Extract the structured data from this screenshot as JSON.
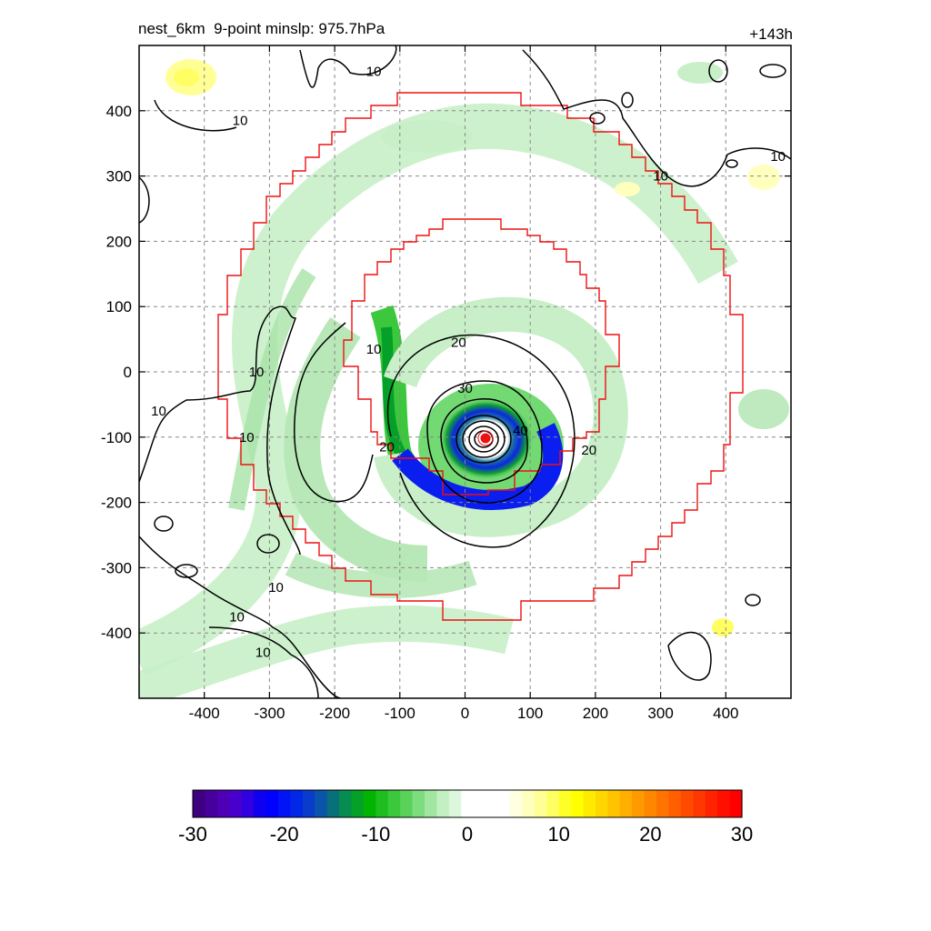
{
  "header": {
    "title": "nest_6km  9-point minslp: 975.7hPa",
    "forecast_hour": "+143h"
  },
  "chart_data": {
    "type": "contour_map",
    "title": "nest_6km  9-point minslp: 975.7hPa",
    "time_label": "+143h",
    "xlim": [
      -500,
      500
    ],
    "ylim": [
      -500,
      500
    ],
    "x_ticks": [
      -400,
      -300,
      -200,
      -100,
      0,
      100,
      200,
      300,
      400
    ],
    "y_ticks": [
      -400,
      -300,
      -200,
      -100,
      0,
      100,
      200,
      300,
      400
    ],
    "x_tick_labels": [
      "-400",
      "-300",
      "-200",
      "-100",
      "0",
      "100",
      "200",
      "300",
      "400"
    ],
    "y_tick_labels": [
      "-400",
      "-300",
      "-200",
      "-100",
      "0",
      "100",
      "200",
      "300",
      "400"
    ],
    "grid": true,
    "storm_center": {
      "x": 30,
      "y": -100
    },
    "contour_labels": [
      {
        "text": "10",
        "x": -140,
        "y": 35
      },
      {
        "text": "10",
        "x": -320,
        "y": 0
      },
      {
        "text": "10",
        "x": -470,
        "y": -60
      },
      {
        "text": "10",
        "x": -335,
        "y": -100
      },
      {
        "text": "10",
        "x": -290,
        "y": -330
      },
      {
        "text": "10",
        "x": -350,
        "y": -375
      },
      {
        "text": "10",
        "x": -310,
        "y": -430
      },
      {
        "text": "10",
        "x": -345,
        "y": 385
      },
      {
        "text": "10",
        "x": -140,
        "y": 460
      },
      {
        "text": "10",
        "x": 300,
        "y": 300
      },
      {
        "text": "10",
        "x": 480,
        "y": 330
      },
      {
        "text": "20",
        "x": -10,
        "y": 45
      },
      {
        "text": "20",
        "x": 190,
        "y": -120
      },
      {
        "text": "20",
        "x": -120,
        "y": -115
      },
      {
        "text": "30",
        "x": 0,
        "y": -25
      },
      {
        "text": "40",
        "x": 85,
        "y": -90
      }
    ],
    "colorbar": {
      "min": -30,
      "max": 30,
      "tick_values": [
        -30,
        -20,
        -10,
        0,
        10,
        20,
        30
      ],
      "tick_labels": [
        "-30",
        "-20",
        "-10",
        "0",
        "10",
        "20",
        "30"
      ],
      "colors": [
        "#3d007f",
        "#46009b",
        "#4e00b4",
        "#4a00cd",
        "#3000e1",
        "#0f00f0",
        "#0000ff",
        "#0014f5",
        "#0028e6",
        "#0a3ccc",
        "#0a55aa",
        "#087078",
        "#068c50",
        "#04a028",
        "#00b400",
        "#1ebe1e",
        "#3cc83c",
        "#5ad25a",
        "#7ddc7d",
        "#a0e6a0",
        "#c3f0c3",
        "#dcf7dc",
        "#ffffff",
        "#ffffff",
        "#ffffff",
        "#ffffff",
        "#ffffe1",
        "#ffffbe",
        "#ffff96",
        "#ffff64",
        "#ffff28",
        "#ffff00",
        "#ffeb00",
        "#ffd700",
        "#ffc300",
        "#ffaf00",
        "#ff9b00",
        "#ff8700",
        "#ff7300",
        "#ff5f00",
        "#ff4b00",
        "#ff3700",
        "#ff2300",
        "#ff0f00",
        "#ff0000"
      ]
    }
  }
}
